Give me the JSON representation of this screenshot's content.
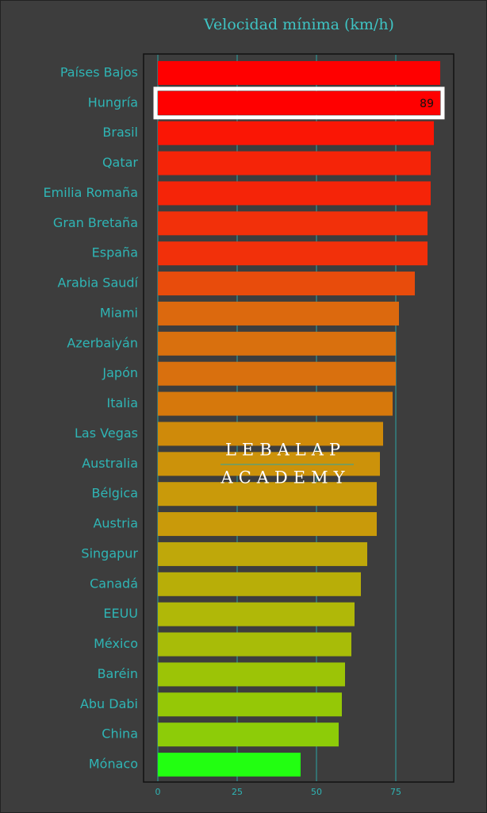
{
  "chart_data": {
    "type": "barh",
    "title": "Velocidad mínima (km/h)",
    "categories": [
      "Países Bajos",
      "Hungría",
      "Brasil",
      "Qatar",
      "Emilia Romaña",
      "Gran Bretaña",
      "España",
      "Arabia Saudí",
      "Miami",
      "Azerbaiyán",
      "Japón",
      "Italia",
      "Las Vegas",
      "Australia",
      "Bélgica",
      "Austria",
      "Singapur",
      "Canadá",
      "EEUU",
      "México",
      "Baréin",
      "Abu Dabi",
      "China",
      "Mónaco"
    ],
    "values": [
      89,
      89,
      87,
      86,
      86,
      85,
      85,
      81,
      76,
      75,
      75,
      74,
      71,
      70,
      69,
      69,
      66,
      64,
      62,
      61,
      59,
      58,
      57,
      45
    ],
    "colors": [
      "#ff0000",
      "#ff0000",
      "#fa1605",
      "#f52408",
      "#f52408",
      "#f2300a",
      "#f2300a",
      "#e84c0c",
      "#dc690e",
      "#d9700e",
      "#d9700e",
      "#d6780c",
      "#cf8a0a",
      "#cc920a",
      "#c99a0a",
      "#c99a0a",
      "#bfa80a",
      "#b8ae08",
      "#b0b808",
      "#a8bc08",
      "#9cc406",
      "#95c806",
      "#8dcc08",
      "#22ff11"
    ],
    "highlight_index": 1,
    "xlim": [
      -4.5,
      93.25
    ],
    "xticks": [
      0,
      25,
      50,
      75
    ],
    "grid": true,
    "watermark": [
      "LEBALAP",
      "ACADEMY"
    ]
  }
}
